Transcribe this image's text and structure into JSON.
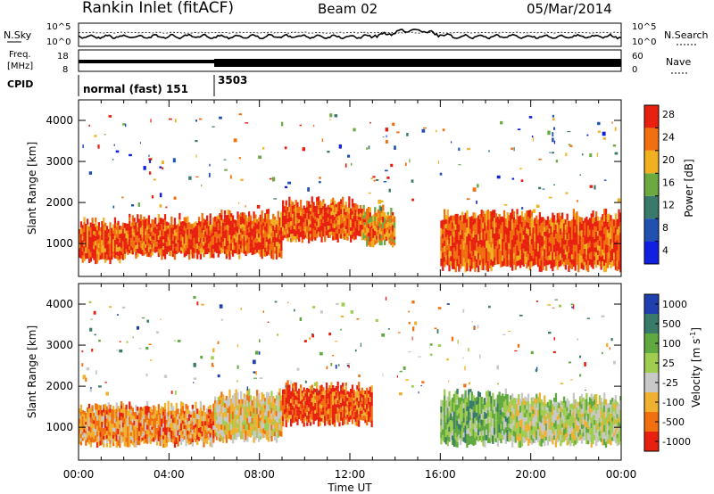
{
  "header": {
    "station": "Rankin Inlet (fitACF)",
    "beam": "Beam 02",
    "date": "05/Mar/2014"
  },
  "noise_panel": {
    "left_label": "N.Sky",
    "right_label": "N.Search",
    "left_ticks": [
      "10^5",
      "10^0"
    ],
    "right_ticks": [
      "10^5",
      "10^0"
    ]
  },
  "freq_panel": {
    "left_label_1": "Freq.",
    "left_label_2": "[MHz]",
    "left_ticks": [
      "18",
      "8"
    ],
    "right_label": "Nave",
    "right_ticks": [
      "60",
      "0"
    ]
  },
  "cpid_panel": {
    "label": "CPID",
    "segments": [
      {
        "name": "normal (fast) 151",
        "start_hour": 0
      },
      {
        "name": "3503",
        "start_hour": 6
      }
    ]
  },
  "chart_data": [
    {
      "type": "heatmap",
      "name": "power",
      "ylabel": "Slant Range [km]",
      "xlabel": "Time UT",
      "ylim": [
        200,
        4500
      ],
      "xlim": [
        0,
        24
      ],
      "y_ticks": [
        1000,
        2000,
        3000,
        4000
      ],
      "colorbar": {
        "label": "Power [dB]",
        "ticks": [
          "4",
          "8",
          "12",
          "16",
          "20",
          "24",
          "28"
        ],
        "colors": [
          "#1020e0",
          "#2050b0",
          "#3a7a6a",
          "#6aaa40",
          "#f0b020",
          "#f07010",
          "#e82010"
        ]
      },
      "bands": [
        {
          "t0": 0.0,
          "t1": 2.0,
          "r0": 600,
          "r1": 1500,
          "level": 6
        },
        {
          "t0": 2.0,
          "t1": 6.0,
          "r0": 700,
          "r1": 1600,
          "level": 6
        },
        {
          "t0": 6.0,
          "t1": 9.0,
          "r0": 700,
          "r1": 1700,
          "level": 6
        },
        {
          "t0": 9.0,
          "t1": 12.5,
          "r0": 1100,
          "r1": 2000,
          "level": 6
        },
        {
          "t0": 12.5,
          "t1": 14.0,
          "r0": 1000,
          "r1": 1800,
          "level": 5
        },
        {
          "t0": 16.0,
          "t1": 24.0,
          "r0": 400,
          "r1": 1700,
          "level": 6
        }
      ]
    },
    {
      "type": "heatmap",
      "name": "velocity",
      "ylabel": "Slant Range [km]",
      "xlabel": "Time UT",
      "ylim": [
        200,
        4500
      ],
      "xlim": [
        0,
        24
      ],
      "y_ticks": [
        1000,
        2000,
        3000,
        4000
      ],
      "x_ticks": [
        "00:00",
        "04:00",
        "08:00",
        "12:00",
        "16:00",
        "20:00",
        "00:00"
      ],
      "colorbar": {
        "label": "Velocity [m s^-1]",
        "ticks": [
          "1000",
          "500",
          "100",
          "25",
          "-25",
          "-100",
          "-500",
          "-1000"
        ],
        "colors": [
          "#2040b0",
          "#3a7a6a",
          "#60a840",
          "#a0cc50",
          "#c8c8c8",
          "#f0b030",
          "#f07010",
          "#e82010"
        ]
      },
      "bands": [
        {
          "t0": 0.0,
          "t1": 6.0,
          "r0": 600,
          "r1": 1500,
          "level": 6
        },
        {
          "t0": 6.0,
          "t1": 9.0,
          "r0": 700,
          "r1": 1800,
          "level": 5
        },
        {
          "t0": 9.0,
          "t1": 13.0,
          "r0": 1100,
          "r1": 2000,
          "level": 7
        },
        {
          "t0": 16.0,
          "t1": 19.0,
          "r0": 600,
          "r1": 1800,
          "level": 3
        },
        {
          "t0": 19.0,
          "t1": 24.0,
          "r0": 600,
          "r1": 1700,
          "level": 4
        }
      ]
    }
  ]
}
